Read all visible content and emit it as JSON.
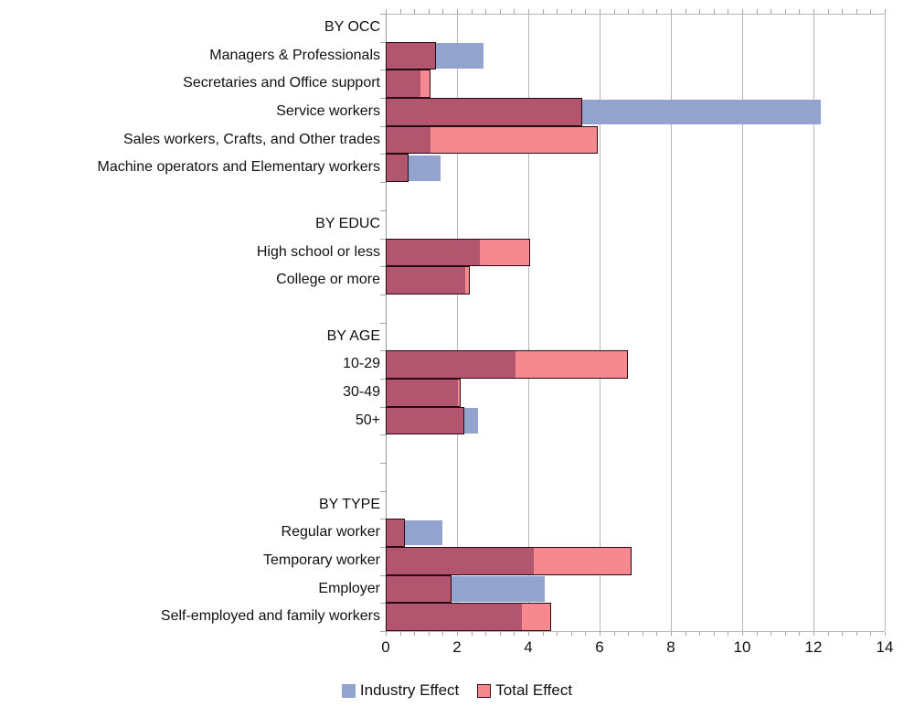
{
  "chart_data": {
    "type": "bar",
    "orientation": "horizontal",
    "title": "",
    "xlabel": "",
    "ylabel": "",
    "x_axis": {
      "min": 0,
      "max": 14,
      "major_tick_interval": 2,
      "minor_tick_interval": 0.4,
      "tick_labels": [
        "0",
        "2",
        "4",
        "6",
        "8",
        "10",
        "12",
        "14"
      ]
    },
    "series_names": [
      "Industry Effect",
      "Total Effect"
    ],
    "groups": [
      {
        "header": "BY OCC",
        "items": [
          {
            "label": "Managers & Professionals",
            "industry_effect": 2.75,
            "total_effect": 1.4
          },
          {
            "label": "Secretaries and Office support",
            "industry_effect": 1.0,
            "total_effect": 1.25
          },
          {
            "label": "Service workers",
            "industry_effect": 12.2,
            "total_effect": 5.5
          },
          {
            "label": "Sales workers, Crafts, and Other trades",
            "industry_effect": 1.25,
            "total_effect": 5.95
          },
          {
            "label": "Machine operators and Elementary workers",
            "industry_effect": 1.55,
            "total_effect": 0.65
          }
        ],
        "blank_rows_after": 1
      },
      {
        "header": "BY EDUC",
        "items": [
          {
            "label": "High school or less",
            "industry_effect": 2.65,
            "total_effect": 4.05
          },
          {
            "label": "College or more",
            "industry_effect": 2.25,
            "total_effect": 2.35
          }
        ],
        "blank_rows_after": 1
      },
      {
        "header": "BY AGE",
        "items": [
          {
            "label": "10-29",
            "industry_effect": 3.65,
            "total_effect": 6.8
          },
          {
            "label": "30-49",
            "industry_effect": 2.05,
            "total_effect": 2.1
          },
          {
            "label": "50+",
            "industry_effect": 2.6,
            "total_effect": 2.2
          }
        ],
        "blank_rows_after": 2
      },
      {
        "header": "BY TYPE",
        "items": [
          {
            "label": "Regular worker",
            "industry_effect": 1.6,
            "total_effect": 0.55
          },
          {
            "label": "Temporary worker",
            "industry_effect": 4.15,
            "total_effect": 6.9
          },
          {
            "label": "Employer",
            "industry_effect": 4.45,
            "total_effect": 1.85
          },
          {
            "label": "Self-employed and family workers",
            "industry_effect": 3.85,
            "total_effect": 4.65
          }
        ],
        "blank_rows_after": 0
      }
    ],
    "legend": [
      {
        "label": "Industry Effect",
        "color": "#92a3ce"
      },
      {
        "label": "Total Effect",
        "color": "#f5898f"
      }
    ],
    "colors": {
      "industry": "#92a3ce",
      "total": "#f5898f",
      "overlap": "#b2566f",
      "bar_border": "#260a12",
      "gridline": "#b6b6b6",
      "axis": "#9a9a9a",
      "text": "#111111"
    },
    "layout_hints": {
      "grid": "vertical-major",
      "legend_position": "bottom-center"
    }
  }
}
